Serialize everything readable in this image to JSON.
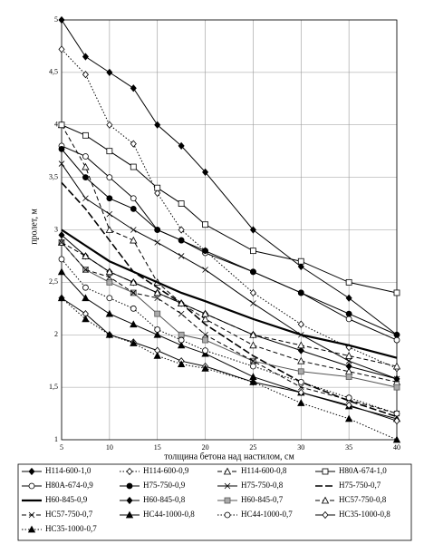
{
  "chart_data": {
    "type": "line",
    "x_label": "толщина бетона над настилом, см",
    "y_label": "пролет, м",
    "x": [
      5,
      7.5,
      10,
      12.5,
      15,
      17.5,
      20,
      25,
      30,
      35,
      40
    ],
    "xlim": [
      5,
      40
    ],
    "xticks": [
      5,
      10,
      15,
      20,
      25,
      30,
      35,
      40
    ],
    "ylim": [
      1,
      5
    ],
    "yticks": [
      1,
      {
        "value": 1.5,
        "label": "1,5"
      },
      2,
      {
        "value": 2.5,
        "label": "2,5"
      },
      3,
      {
        "value": 3.5,
        "label": "3,5"
      },
      4,
      {
        "value": 4.5,
        "label": "4,5"
      },
      5
    ],
    "grid": true,
    "series": [
      {
        "name": "Н114-600-1,0",
        "color": "#000",
        "dash": "solid",
        "marker": "diamond",
        "values": [
          5.0,
          4.65,
          4.5,
          4.35,
          4.0,
          3.8,
          3.55,
          3.0,
          2.65,
          2.35,
          2.0
        ]
      },
      {
        "name": "Н114-600-0,9",
        "color": "#000",
        "dash": "dot",
        "marker": "diamond-open",
        "values": [
          4.72,
          4.48,
          4.0,
          3.82,
          3.35,
          3.0,
          2.8,
          2.4,
          2.1,
          1.88,
          1.68
        ]
      },
      {
        "name": "Н114-600-0,8",
        "color": "#000",
        "dash": "dash",
        "marker": "triangle-open",
        "values": [
          4.0,
          3.6,
          3.0,
          2.9,
          2.5,
          2.3,
          2.15,
          1.9,
          1.75,
          1.65,
          1.55
        ]
      },
      {
        "name": "Н80А-674-1,0",
        "color": "#000",
        "dash": "solid",
        "marker": "square-open",
        "values": [
          4.0,
          3.9,
          3.75,
          3.6,
          3.4,
          3.25,
          3.05,
          2.8,
          2.7,
          2.5,
          2.4
        ]
      },
      {
        "name": "Н80А-674-0,9",
        "color": "#000",
        "dash": "solid",
        "marker": "circle-open",
        "values": [
          3.8,
          3.7,
          3.5,
          3.3,
          3.0,
          2.9,
          2.78,
          2.6,
          2.4,
          2.15,
          1.95
        ]
      },
      {
        "name": "Н75-750-0,9",
        "color": "#000",
        "dash": "solid",
        "marker": "circle",
        "values": [
          3.77,
          3.5,
          3.3,
          3.2,
          3.0,
          2.9,
          2.8,
          2.6,
          2.4,
          2.2,
          2.0
        ]
      },
      {
        "name": "Н75-750-0,8",
        "color": "#000",
        "dash": "solid",
        "marker": "x",
        "values": [
          3.63,
          3.3,
          3.15,
          3.0,
          2.88,
          2.75,
          2.62,
          2.3,
          2.0,
          1.75,
          1.58
        ]
      },
      {
        "name": "Н75-750-0,7",
        "color": "#000",
        "dash": "longdash",
        "marker": "none",
        "values": [
          3.45,
          3.2,
          2.9,
          2.6,
          2.45,
          2.3,
          2.1,
          1.8,
          1.55,
          1.37,
          1.22
        ]
      },
      {
        "name": "Н60-845-0,9",
        "color": "#000",
        "dash": "heavy",
        "marker": "none",
        "values": [
          3.0,
          2.85,
          2.7,
          2.6,
          2.5,
          2.4,
          2.32,
          2.15,
          2.0,
          1.9,
          1.78
        ]
      },
      {
        "name": "Н60-845-0,8",
        "color": "#000",
        "dash": "solid",
        "marker": "diamond",
        "values": [
          2.95,
          2.75,
          2.6,
          2.5,
          2.4,
          2.3,
          2.2,
          2.0,
          1.85,
          1.7,
          1.58
        ]
      },
      {
        "name": "Н60-845-0,7",
        "color": "#555",
        "dash": "solid",
        "marker": "square-grey",
        "values": [
          2.88,
          2.62,
          2.5,
          2.4,
          2.2,
          2.0,
          1.95,
          1.75,
          1.65,
          1.6,
          1.5
        ]
      },
      {
        "name": "НС57-750-0,8",
        "color": "#000",
        "dash": "dash",
        "marker": "triangle-open",
        "values": [
          2.88,
          2.75,
          2.6,
          2.5,
          2.4,
          2.3,
          2.2,
          2.0,
          1.9,
          1.8,
          1.7
        ]
      },
      {
        "name": "НС57-750-0,7",
        "color": "#000",
        "dash": "dash",
        "marker": "x",
        "values": [
          2.88,
          2.62,
          2.55,
          2.4,
          2.35,
          2.2,
          2.0,
          1.75,
          1.5,
          1.38,
          1.25
        ]
      },
      {
        "name": "НС44-1000-0,8",
        "color": "#000",
        "dash": "solid",
        "marker": "triangle",
        "values": [
          2.6,
          2.35,
          2.2,
          2.1,
          2.0,
          1.9,
          1.82,
          1.6,
          1.45,
          1.32,
          1.2
        ]
      },
      {
        "name": "НС44-1000-0,7",
        "color": "#000",
        "dash": "dot",
        "marker": "circle-open",
        "values": [
          2.72,
          2.45,
          2.35,
          2.25,
          2.05,
          1.95,
          1.85,
          1.7,
          1.55,
          1.4,
          1.25
        ]
      },
      {
        "name": "НС35-1000-0,8",
        "color": "#000",
        "dash": "solid",
        "marker": "diamond-open",
        "values": [
          2.35,
          2.2,
          2.0,
          1.93,
          1.85,
          1.75,
          1.7,
          1.55,
          1.45,
          1.33,
          1.18
        ]
      },
      {
        "name": "НС35-1000-0,7",
        "color": "#000",
        "dash": "dot",
        "marker": "triangle",
        "values": [
          2.35,
          2.15,
          2.0,
          1.92,
          1.8,
          1.72,
          1.68,
          1.55,
          1.35,
          1.2,
          1.0
        ]
      }
    ]
  }
}
